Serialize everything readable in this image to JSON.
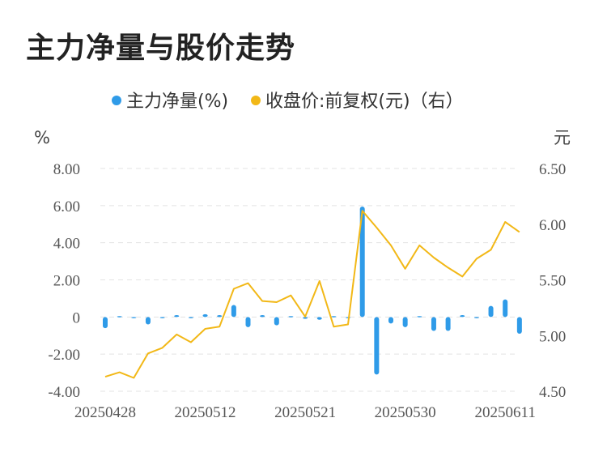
{
  "title": "主力净量与股价走势",
  "chart_data": {
    "type": "bar+line",
    "legend": [
      "主力净量(%)",
      "收盘价:前复权(元)（右）"
    ],
    "y_left_unit": "%",
    "y_right_unit": "元",
    "y_left_ticks": [
      "8.00",
      "6.00",
      "4.00",
      "2.00",
      "0",
      "-2.00",
      "-4.00"
    ],
    "y_right_ticks": [
      "6.50",
      "6.00",
      "5.50",
      "5.00",
      "4.50"
    ],
    "y_left_range": [
      -4,
      8
    ],
    "y_right_range": [
      4.5,
      6.5
    ],
    "x_tick_labels": [
      "20250428",
      "20250512",
      "20250521",
      "20250530",
      "20250611"
    ],
    "x_tick_indices": [
      0,
      7,
      14,
      21,
      28
    ],
    "colors": {
      "bar": "#2f9be8",
      "line": "#f2b817",
      "grid": "#e3e3e3"
    },
    "series": [
      {
        "name": "主力净量(%)",
        "axis": "left",
        "values": [
          -0.6,
          0.05,
          -0.05,
          -0.4,
          -0.05,
          0.1,
          -0.05,
          0.15,
          0.1,
          0.65,
          -0.55,
          0.1,
          -0.45,
          0.05,
          -0.1,
          -0.15,
          0.05,
          -0.05,
          5.95,
          -3.1,
          -0.35,
          -0.55,
          0.05,
          -0.75,
          -0.75,
          0.1,
          -0.05,
          0.6,
          0.95,
          -0.9
        ]
      },
      {
        "name": "收盘价:前复权(元)（右）",
        "axis": "right",
        "values": [
          4.63,
          4.67,
          4.62,
          4.84,
          4.89,
          5.01,
          4.94,
          5.06,
          5.08,
          5.42,
          5.47,
          5.31,
          5.3,
          5.36,
          5.17,
          5.49,
          5.08,
          5.1,
          6.12,
          5.97,
          5.81,
          5.6,
          5.81,
          5.7,
          5.61,
          5.53,
          5.69,
          5.77,
          6.02,
          5.93
        ]
      }
    ]
  }
}
